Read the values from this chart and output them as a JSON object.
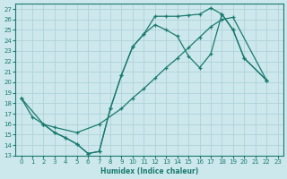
{
  "xlabel": "Humidex (Indice chaleur)",
  "bg_color": "#cce8ec",
  "grid_color": "#aacdd4",
  "line_color": "#1a7a6e",
  "xlim": [
    -0.5,
    23.5
  ],
  "ylim": [
    13,
    27.5
  ],
  "xticks": [
    0,
    1,
    2,
    3,
    4,
    5,
    6,
    7,
    8,
    9,
    10,
    11,
    12,
    13,
    14,
    15,
    16,
    17,
    18,
    19,
    20,
    21,
    22,
    23
  ],
  "yticks": [
    13,
    14,
    15,
    16,
    17,
    18,
    19,
    20,
    21,
    22,
    23,
    24,
    25,
    26,
    27
  ],
  "line1_x": [
    0,
    1,
    2,
    3,
    4,
    5,
    6,
    7,
    8,
    9,
    10,
    11,
    12,
    13,
    14,
    15,
    16,
    17,
    18,
    19,
    20,
    22
  ],
  "line1_y": [
    18.5,
    16.7,
    16.0,
    15.2,
    14.7,
    14.1,
    13.2,
    13.4,
    17.5,
    20.7,
    23.4,
    24.6,
    26.3,
    26.3,
    26.3,
    26.4,
    26.5,
    27.1,
    26.5,
    25.0,
    22.3,
    20.2
  ],
  "line2_x": [
    0,
    2,
    3,
    5,
    7,
    9,
    10,
    11,
    12,
    13,
    14,
    15,
    16,
    17,
    18,
    19,
    22
  ],
  "line2_y": [
    18.5,
    16.0,
    15.7,
    15.2,
    16.0,
    17.5,
    18.5,
    19.4,
    20.4,
    21.4,
    22.3,
    23.3,
    24.3,
    25.3,
    26.0,
    26.2,
    20.2
  ],
  "line3_x": [
    2,
    3,
    4,
    5,
    6,
    7,
    8,
    9,
    10,
    11,
    12,
    13,
    14,
    15,
    16,
    17,
    18,
    19,
    20,
    22
  ],
  "line3_y": [
    16.0,
    15.2,
    14.7,
    14.1,
    13.2,
    13.4,
    17.5,
    20.7,
    23.4,
    24.6,
    25.5,
    25.0,
    24.4,
    22.5,
    21.4,
    22.7,
    26.5,
    25.0,
    22.3,
    20.2
  ]
}
